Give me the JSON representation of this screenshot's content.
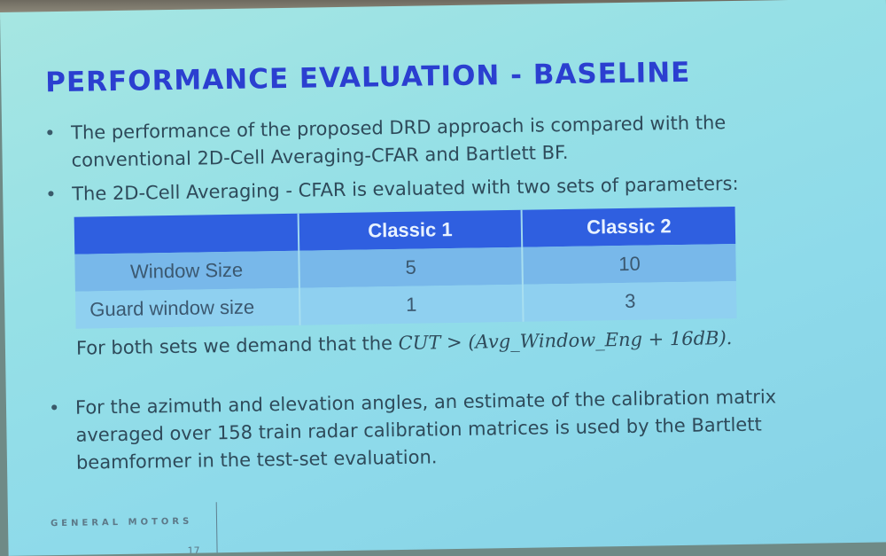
{
  "slide": {
    "title": "PERFORMANCE EVALUATION - BASELINE",
    "bullets": [
      {
        "dot": "•",
        "text": "The performance of the proposed DRD approach is compared with the conventional 2D-Cell Averaging-CFAR and Bartlett BF."
      },
      {
        "dot": "•",
        "text": "The 2D-Cell Averaging - CFAR is evaluated with two sets of parameters:"
      },
      {
        "dot": "•",
        "text": "For the azimuth and elevation angles, an estimate of the calibration matrix averaged over 158 train radar calibration matrices is used by the Bartlett beamformer in the test-set evaluation."
      }
    ],
    "table": {
      "headers": [
        "",
        "Classic 1",
        "Classic 2"
      ],
      "rows": [
        [
          "Window Size",
          "5",
          "10"
        ],
        [
          "Guard window size",
          "1",
          "3"
        ]
      ]
    },
    "note": {
      "prefix": "For both sets we demand that the ",
      "formula": "CUT > (Avg_Window_Eng + 16dB).",
      "suffix": ""
    },
    "footer": {
      "logo_text": "GENERAL MOTORS",
      "page_number": "17"
    },
    "colors": {
      "title": "#2b3fd0",
      "table_header": "#2f5fe0",
      "row_1": "#78b8ea",
      "row_2": "#8fd0f0"
    }
  }
}
